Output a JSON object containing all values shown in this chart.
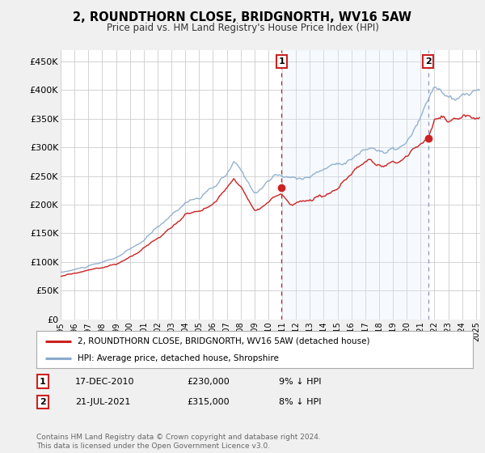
{
  "title": "2, ROUNDTHORN CLOSE, BRIDGNORTH, WV16 5AW",
  "subtitle": "Price paid vs. HM Land Registry's House Price Index (HPI)",
  "ylim": [
    0,
    470000
  ],
  "yticks": [
    0,
    50000,
    100000,
    150000,
    200000,
    250000,
    300000,
    350000,
    400000,
    450000
  ],
  "ytick_labels": [
    "£0",
    "£50K",
    "£100K",
    "£150K",
    "£200K",
    "£250K",
    "£300K",
    "£350K",
    "£400K",
    "£450K"
  ],
  "bg_color": "#f0f0f0",
  "plot_bg_color": "#ffffff",
  "grid_color": "#cccccc",
  "sale1_price": 230000,
  "sale2_price": 315000,
  "sale1_year": 2010.96,
  "sale2_year": 2021.54,
  "legend_line1": "2, ROUNDTHORN CLOSE, BRIDGNORTH, WV16 5AW (detached house)",
  "legend_line2": "HPI: Average price, detached house, Shropshire",
  "table_row1": [
    "1",
    "17-DEC-2010",
    "£230,000",
    "9% ↓ HPI"
  ],
  "table_row2": [
    "2",
    "21-JUL-2021",
    "£315,000",
    "8% ↓ HPI"
  ],
  "footnote": "Contains HM Land Registry data © Crown copyright and database right 2024.\nThis data is licensed under the Open Government Licence v3.0.",
  "red_color": "#cc2222",
  "blue_color": "#88aacc",
  "shade_color": "#ddeeff",
  "xmin": 1995.0,
  "xmax": 2025.3
}
